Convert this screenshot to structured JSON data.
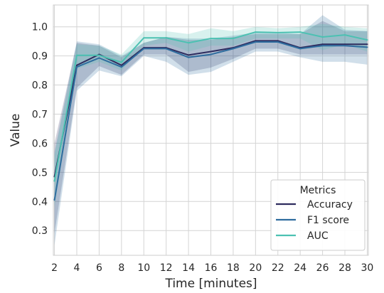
{
  "chart_data": {
    "type": "line",
    "xlabel": "Time [minutes]",
    "ylabel": "Value",
    "x": [
      2,
      4,
      6,
      8,
      10,
      12,
      14,
      16,
      18,
      20,
      22,
      24,
      26,
      28,
      30
    ],
    "xticks": [
      "2",
      "4",
      "6",
      "8",
      "10",
      "12",
      "14",
      "16",
      "18",
      "20",
      "22",
      "24",
      "26",
      "28",
      "30"
    ],
    "xlim": [
      1.9,
      30.1
    ],
    "ylim": [
      0.215,
      1.075
    ],
    "yticks": [
      "0.3",
      "0.4",
      "0.5",
      "0.6",
      "0.7",
      "0.8",
      "0.9",
      "1.0"
    ],
    "ytick_values": [
      0.3,
      0.4,
      0.5,
      0.6,
      0.7,
      0.8,
      0.9,
      1.0
    ],
    "grid": true,
    "legend": {
      "title": "Metrics",
      "placement": "lower-right"
    },
    "series": [
      {
        "name": "Accuracy",
        "color": "#2e2c5e",
        "values": [
          0.485,
          0.868,
          0.905,
          0.868,
          0.928,
          0.928,
          0.903,
          0.915,
          0.928,
          0.952,
          0.952,
          0.928,
          0.94,
          0.94,
          0.94
        ],
        "lower": [
          0.29,
          0.79,
          0.865,
          0.835,
          0.905,
          0.905,
          0.845,
          0.86,
          0.89,
          0.925,
          0.925,
          0.905,
          0.905,
          0.905,
          0.905
        ],
        "upper": [
          0.6,
          0.945,
          0.935,
          0.895,
          0.945,
          0.965,
          0.955,
          0.955,
          0.965,
          0.975,
          0.975,
          0.975,
          1.02,
          0.985,
          0.985
        ]
      },
      {
        "name": "F1 score",
        "color": "#2e6c9e",
        "values": [
          0.405,
          0.862,
          0.893,
          0.862,
          0.925,
          0.925,
          0.895,
          0.905,
          0.925,
          0.948,
          0.948,
          0.925,
          0.935,
          0.935,
          0.93
        ],
        "lower": [
          0.25,
          0.78,
          0.85,
          0.83,
          0.9,
          0.88,
          0.835,
          0.845,
          0.88,
          0.915,
          0.915,
          0.895,
          0.88,
          0.88,
          0.87
        ],
        "upper": [
          0.57,
          0.95,
          0.94,
          0.9,
          0.945,
          0.965,
          0.96,
          0.96,
          0.97,
          0.98,
          0.98,
          0.975,
          1.04,
          0.99,
          0.985
        ]
      },
      {
        "name": "AUC",
        "color": "#4cc1b2",
        "values": [
          0.47,
          0.902,
          0.902,
          0.878,
          0.962,
          0.962,
          0.945,
          0.96,
          0.96,
          0.982,
          0.98,
          0.982,
          0.965,
          0.972,
          0.955
        ],
        "lower": [
          0.38,
          0.855,
          0.88,
          0.85,
          0.935,
          0.945,
          0.915,
          0.935,
          0.935,
          0.96,
          0.96,
          0.96,
          0.92,
          0.94,
          0.915
        ],
        "upper": [
          0.56,
          0.94,
          0.935,
          0.905,
          0.985,
          0.985,
          0.975,
          0.995,
          0.985,
          1.0,
          0.995,
          1.0,
          1.01,
          1.0,
          0.995
        ]
      }
    ]
  }
}
